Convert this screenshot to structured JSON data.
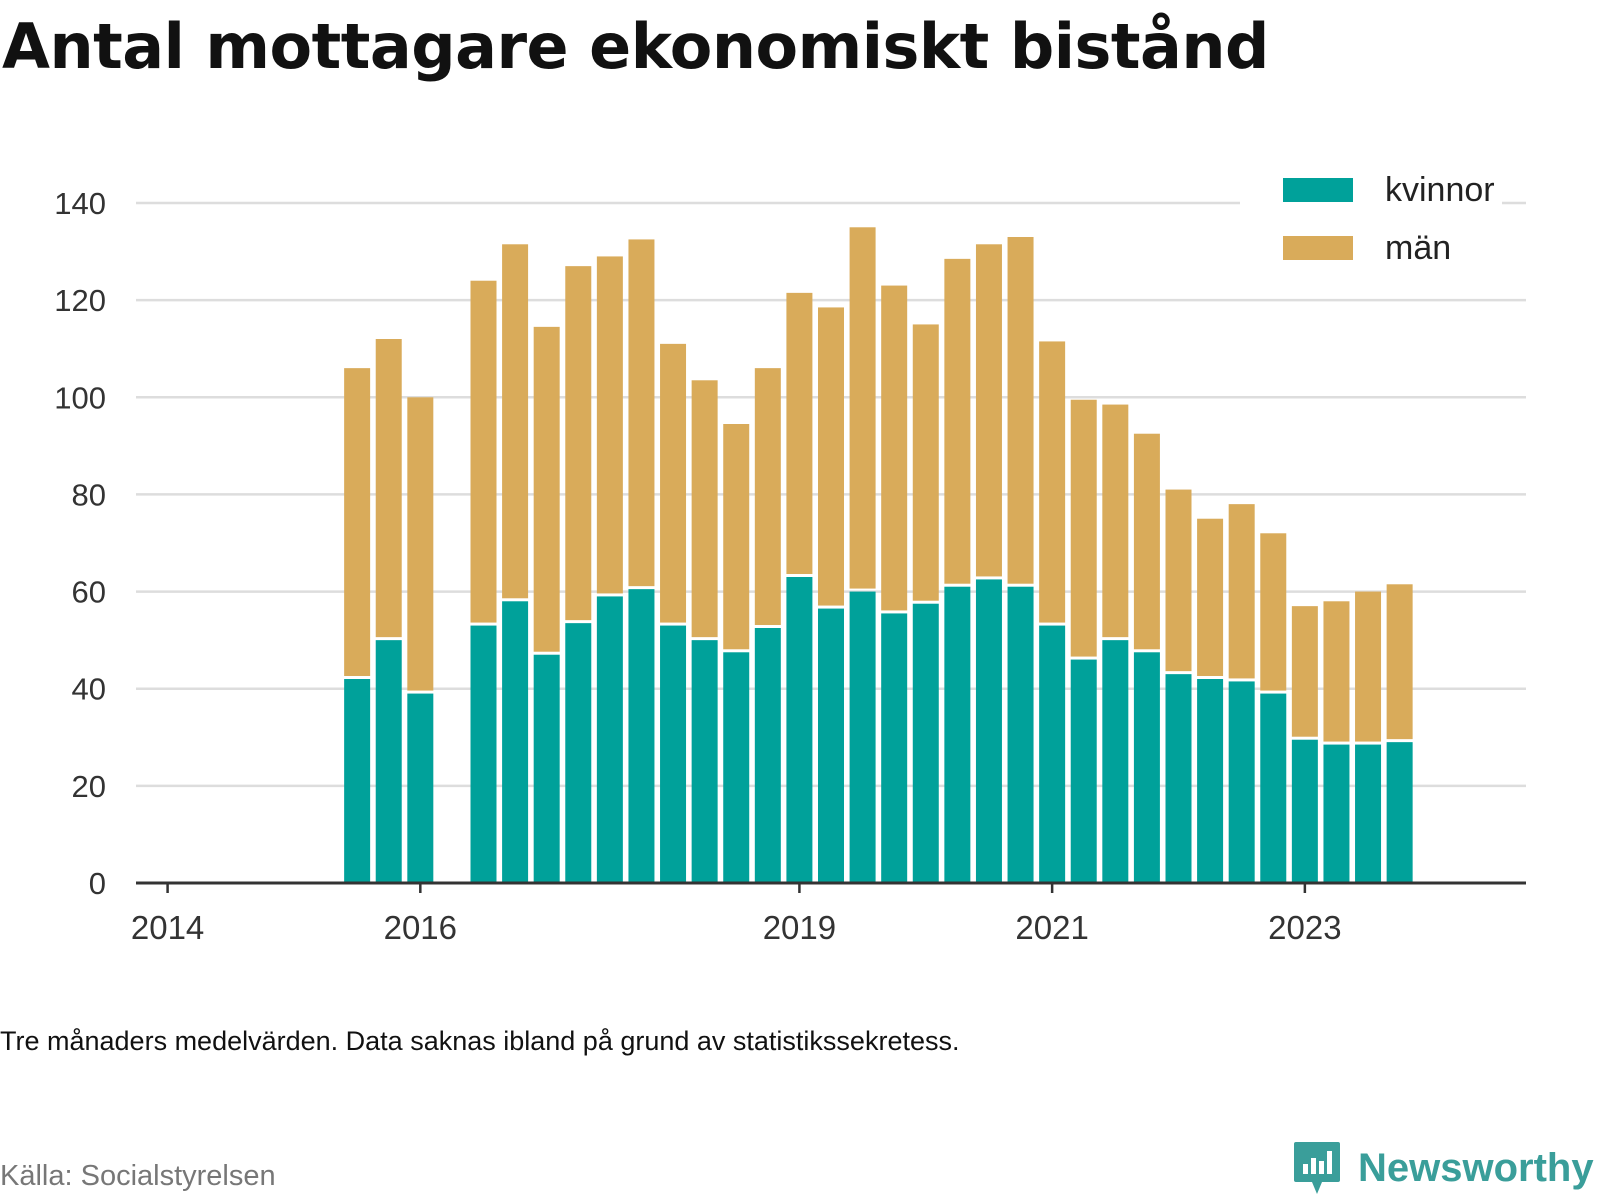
{
  "title": "Antal mottagare ekonomiskt bistånd",
  "note": "Tre månaders medelvärden. Data saknas ibland på grund av statistikssekretess.",
  "source": "Källa: Socialstyrelsen",
  "brand": {
    "name": "Newsworthy",
    "icon": "chart-bubble-icon",
    "color": "#3a9e9a"
  },
  "chart_data": {
    "type": "bar",
    "stacked": true,
    "y_ticks": [
      0,
      20,
      40,
      60,
      80,
      100,
      120,
      140
    ],
    "ylim": [
      0,
      140
    ],
    "x_ticks": [
      "2014",
      "2016",
      "2019",
      "2021",
      "2023"
    ],
    "grid": true,
    "legend_position": "top-right",
    "colors": {
      "kvinnor": "#00a19a",
      "män": "#d9ab5a"
    },
    "series": [
      {
        "name": "kvinnor",
        "values": [
          42,
          50,
          39,
          53,
          58,
          47,
          53.5,
          59,
          60.5,
          53,
          50,
          47.5,
          52.5,
          63,
          56.5,
          60,
          55.5,
          57.5,
          61,
          62.5,
          61,
          53,
          46,
          50,
          47.5,
          43,
          42,
          41.5,
          39,
          29.5,
          28.5,
          28.5,
          29
        ]
      },
      {
        "name": "män",
        "values": [
          64,
          62,
          61,
          71,
          73.5,
          67.5,
          73.5,
          70,
          72,
          58,
          53.5,
          47,
          53.5,
          58.5,
          62,
          75,
          67.5,
          57.5,
          67.5,
          69,
          72,
          58.5,
          53.5,
          48.5,
          45,
          38,
          33,
          36.5,
          33,
          27.5,
          29.5,
          31.5,
          32.5
        ]
      }
    ],
    "bar_periods": [
      "2015-Q3",
      "2015-Q4",
      "2016-Q1",
      "2016-Q3",
      "2016-Q4",
      "2017-Q1",
      "2017-Q2",
      "2017-Q3",
      "2017-Q4",
      "2018-Q1",
      "2018-Q2",
      "2018-Q3",
      "2018-Q4",
      "2019-Q1",
      "2019-Q2",
      "2019-Q3",
      "2019-Q4",
      "2020-Q1",
      "2020-Q2",
      "2020-Q3",
      "2020-Q4",
      "2021-Q1",
      "2021-Q2",
      "2021-Q3",
      "2021-Q4",
      "2022-Q1",
      "2022-Q2",
      "2022-Q3",
      "2022-Q4",
      "2023-Q1",
      "2023-Q2",
      "2023-Q3",
      "2023-Q4"
    ],
    "x_axis_periods": {
      "start": "2013-Q4",
      "end": "2024-Q4",
      "tick_periods": [
        "2014-Q1",
        "2016-Q1",
        "2019-Q1",
        "2021-Q1",
        "2023-Q1"
      ]
    }
  }
}
